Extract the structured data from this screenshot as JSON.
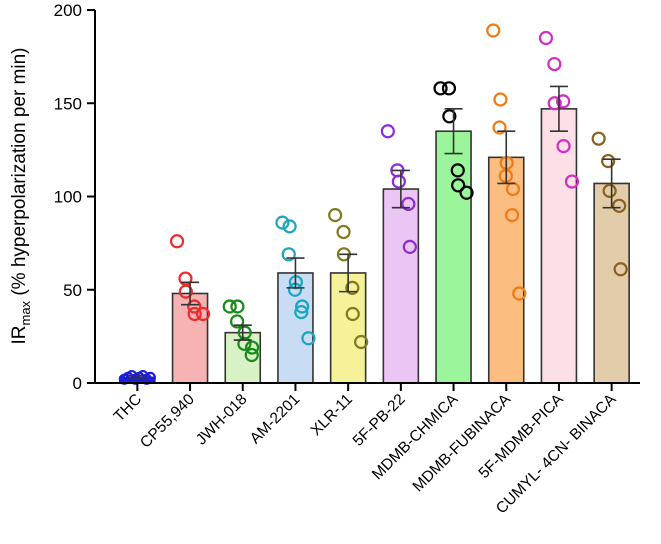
{
  "chart_data": {
    "type": "bar",
    "title": "",
    "xlabel": "",
    "ylabel": {
      "main": "IR",
      "subscript": "max",
      "rest": " (% hyperpolarization per min)"
    },
    "ylim": [
      0,
      200
    ],
    "yticks": [
      "0",
      "50",
      "100",
      "150",
      "200"
    ],
    "error_bars": "mean ± SEM",
    "categories": [
      "THC",
      "CP55,940",
      "JWH-018",
      "AM-2201",
      "XLR-11",
      "5F-PB-22",
      "MDMB-CHMICA",
      "MDMB-FUBINACA",
      "5F-MDMB-PICA",
      "CUMYL- 4CN- BINACA"
    ],
    "values": [
      3,
      48,
      27,
      59,
      59,
      104,
      135,
      121,
      147,
      107
    ],
    "errors": [
      1,
      6,
      4,
      8,
      10,
      10,
      12,
      14,
      12,
      13
    ],
    "points": [
      [
        2,
        3,
        4,
        2,
        3,
        4,
        2,
        3
      ],
      [
        76,
        56,
        49,
        41,
        37,
        37
      ],
      [
        41,
        41,
        33,
        27,
        21,
        19,
        15
      ],
      [
        86,
        84,
        69,
        54,
        50,
        41,
        38,
        24
      ],
      [
        90,
        81,
        69,
        51,
        37,
        22
      ],
      [
        135,
        114,
        108,
        96,
        73
      ],
      [
        158,
        158,
        143,
        114,
        106,
        102
      ],
      [
        189,
        152,
        137,
        118,
        111,
        104,
        90,
        48
      ],
      [
        185,
        171,
        150,
        151,
        127,
        108
      ],
      [
        131,
        119,
        103,
        95,
        61
      ]
    ],
    "bar_colors": [
      "#1c1ce6",
      "#f7b3b3",
      "#d8f1c5",
      "#c8dcf4",
      "#f6f29a",
      "#ebc6f4",
      "#9bf59b",
      "#fbbd80",
      "#fde0e6",
      "#e3ccaa"
    ],
    "point_colors": [
      "#1c1ce6",
      "#ec2b2b",
      "#1a8a1a",
      "#1aa6c0",
      "#807a20",
      "#8d2cd6",
      "#000000",
      "#ef7a16",
      "#d52cc5",
      "#8a6120"
    ]
  }
}
